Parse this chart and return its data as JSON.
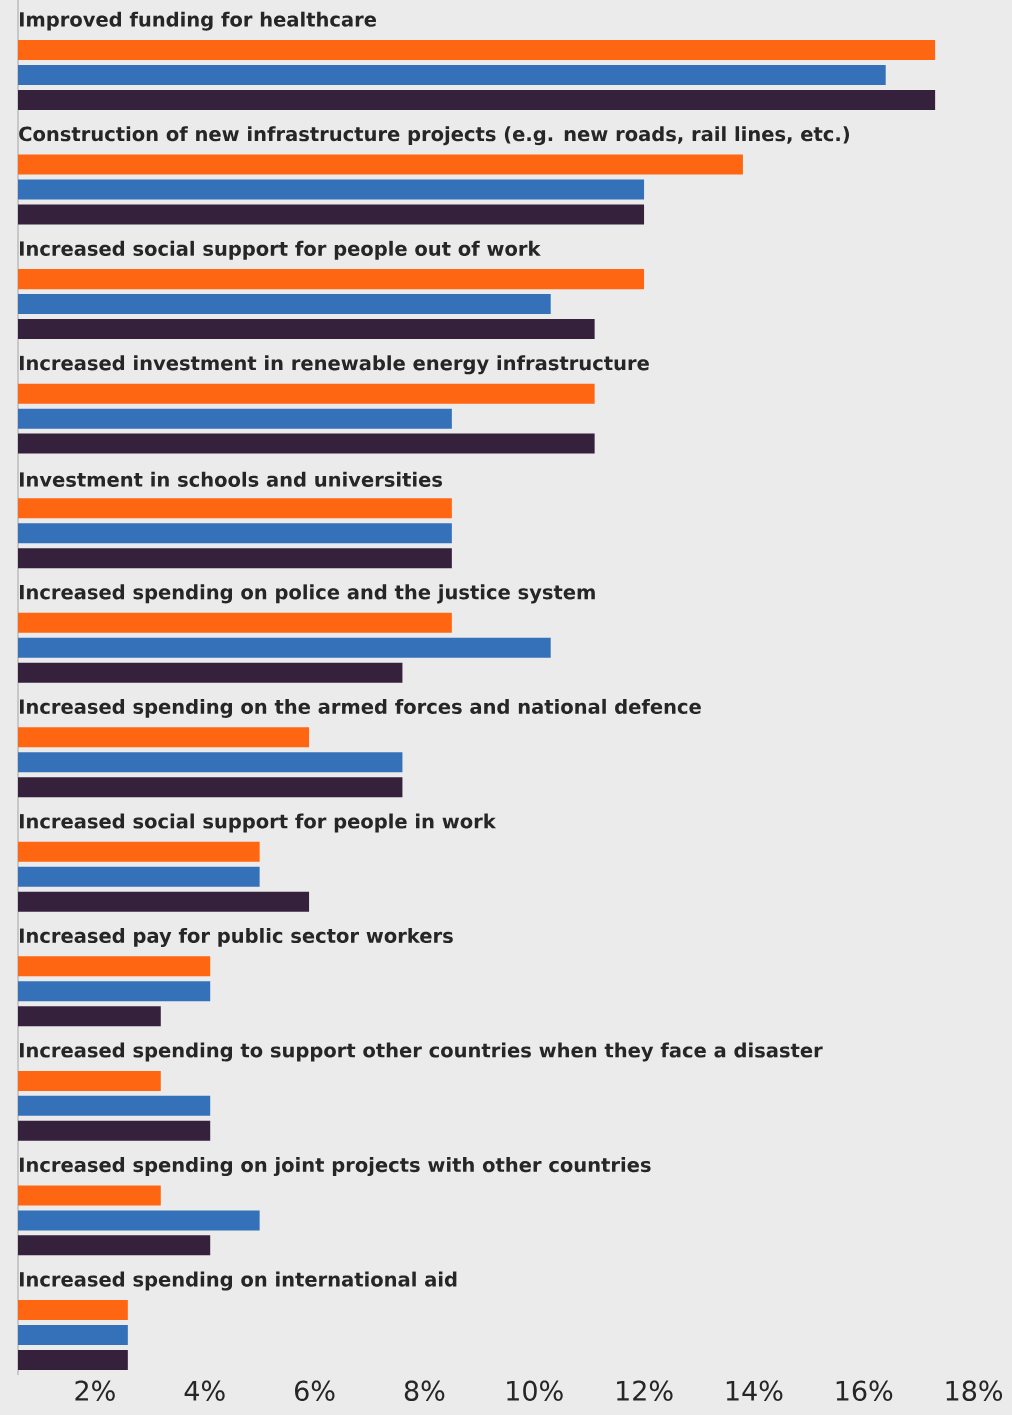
{
  "chart_data": {
    "type": "bar",
    "orientation": "horizontal",
    "categories": [
      "Improved funding for healthcare",
      "Construction of new infrastructure projects (e.g. new roads, rail lines, etc.)",
      "Increased social support for people out of work",
      "Increased investment in renewable energy infrastructure",
      "Investment in schools and universities",
      "Increased spending on police and the justice system",
      "Increased spending on the armed forces and national defence",
      "Increased social support for people in work",
      "Increased pay for public sector workers",
      "Increased spending to support other countries when they face a disaster",
      "Increased spending on joint projects with other countries",
      "Increased spending on international aid"
    ],
    "series": [
      {
        "color": "#ff6611",
        "values": [
          17.3,
          13.8,
          12.0,
          11.1,
          8.5,
          8.5,
          5.9,
          5.0,
          4.1,
          3.2,
          3.2,
          2.6
        ]
      },
      {
        "color": "#3571b8",
        "values": [
          16.4,
          12.0,
          10.3,
          8.5,
          8.5,
          10.3,
          7.6,
          5.0,
          4.1,
          4.1,
          5.0,
          2.6
        ]
      },
      {
        "color": "#36213d",
        "values": [
          17.3,
          12.0,
          11.1,
          11.1,
          8.5,
          7.6,
          7.6,
          5.9,
          3.2,
          4.1,
          4.1,
          2.6
        ]
      }
    ],
    "xlim": [
      0.6,
      18.7
    ],
    "xticks": [
      {
        "value": 2,
        "label": "2%"
      },
      {
        "value": 4,
        "label": "4%"
      },
      {
        "value": 6,
        "label": "6%"
      },
      {
        "value": 8,
        "label": "8%"
      },
      {
        "value": 10,
        "label": "10%"
      },
      {
        "value": 12,
        "label": "12%"
      },
      {
        "value": 14,
        "label": "14%"
      },
      {
        "value": 16,
        "label": "16%"
      },
      {
        "value": 18,
        "label": "18%"
      }
    ],
    "grid": false
  }
}
